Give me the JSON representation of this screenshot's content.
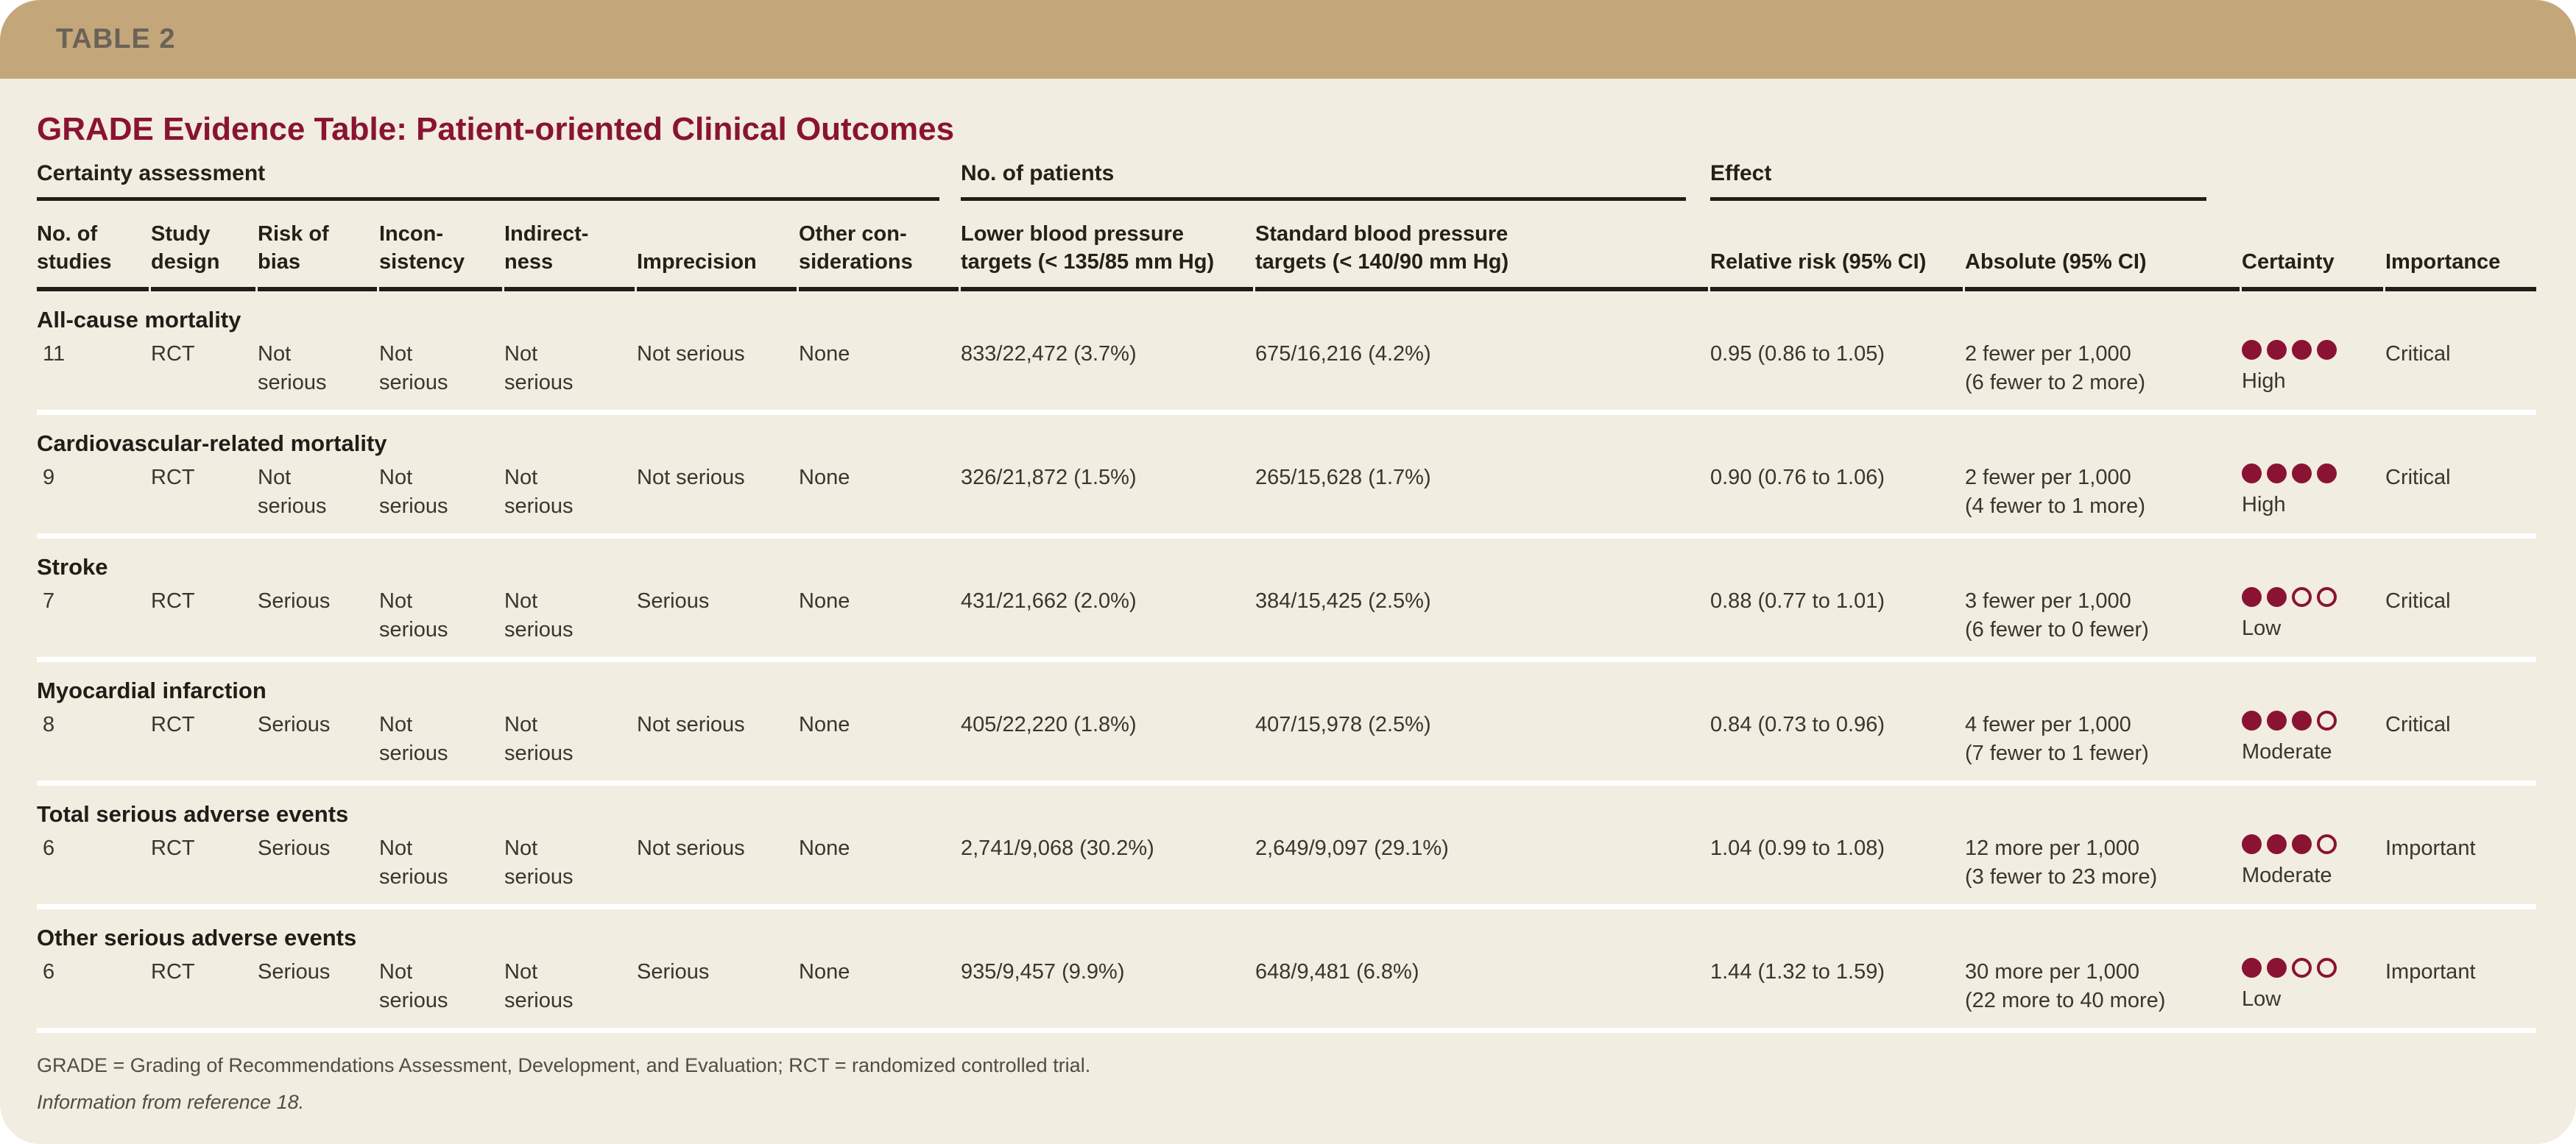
{
  "table_tag": "TABLE 2",
  "title": "GRADE Evidence Table: Patient-oriented Clinical Outcomes",
  "colors": {
    "band": "#c3a77b",
    "card_bg": "#f2ede1",
    "accent_maroon": "#8a1333",
    "rule_black": "#211d18",
    "row_separator": "#ffffff",
    "tag_text": "#6b6257",
    "heading_text": "#262019",
    "body_text": "#3a352f",
    "footnote_text": "#524c44"
  },
  "header": {
    "groups": [
      {
        "label": "Certainty assessment"
      },
      {
        "label": "No. of patients"
      },
      {
        "label": "Effect"
      }
    ],
    "columns": [
      {
        "key": "no_of_studies",
        "label": "No. of\nstudies"
      },
      {
        "key": "study_design",
        "label": "Study\ndesign"
      },
      {
        "key": "risk_of_bias",
        "label": "Risk of\nbias"
      },
      {
        "key": "inconsistency",
        "label": "Incon-\nsistency"
      },
      {
        "key": "indirectness",
        "label": "Indirect-\nness"
      },
      {
        "key": "imprecision",
        "label": "Imprecision"
      },
      {
        "key": "other_considerations",
        "label": "Other con-\nsiderations"
      },
      {
        "key": "lower_bp",
        "label": "Lower blood pressure\ntargets (< 135/85 mm Hg)"
      },
      {
        "key": "standard_bp",
        "label": "Standard blood pressure\ntargets (< 140/90 mm Hg)"
      },
      {
        "key": "relative_risk",
        "label": "Relative risk (95% CI)"
      },
      {
        "key": "absolute",
        "label": "Absolute (95% CI)"
      },
      {
        "key": "certainty",
        "label": "Certainty"
      },
      {
        "key": "importance",
        "label": "Importance"
      }
    ]
  },
  "sections": [
    {
      "outcome": "All-cause mortality",
      "cells": {
        "no_of_studies": "11",
        "study_design": "RCT",
        "risk_of_bias": "Not serious",
        "inconsistency": "Not serious",
        "indirectness": "Not serious",
        "imprecision": "Not serious",
        "other_considerations": "None",
        "lower_bp": "833/22,472 (3.7%)",
        "standard_bp": "675/16,216 (4.2%)",
        "relative_risk": "0.95 (0.86 to 1.05)",
        "absolute": "2 fewer per 1,000\n(6 fewer to 2 more)",
        "certainty": {
          "dots_filled": 4,
          "dots_total": 4,
          "label": "High"
        },
        "importance": "Critical"
      }
    },
    {
      "outcome": "Cardiovascular-related mortality",
      "cells": {
        "no_of_studies": "9",
        "study_design": "RCT",
        "risk_of_bias": "Not serious",
        "inconsistency": "Not serious",
        "indirectness": "Not serious",
        "imprecision": "Not serious",
        "other_considerations": "None",
        "lower_bp": "326/21,872 (1.5%)",
        "standard_bp": "265/15,628 (1.7%)",
        "relative_risk": "0.90 (0.76 to 1.06)",
        "absolute": "2 fewer per 1,000\n(4 fewer to 1 more)",
        "certainty": {
          "dots_filled": 4,
          "dots_total": 4,
          "label": "High"
        },
        "importance": "Critical"
      }
    },
    {
      "outcome": "Stroke",
      "cells": {
        "no_of_studies": "7",
        "study_design": "RCT",
        "risk_of_bias": "Serious",
        "inconsistency": "Not serious",
        "indirectness": "Not serious",
        "imprecision": "Serious",
        "other_considerations": "None",
        "lower_bp": "431/21,662 (2.0%)",
        "standard_bp": "384/15,425 (2.5%)",
        "relative_risk": "0.88 (0.77 to 1.01)",
        "absolute": "3 fewer per 1,000\n(6 fewer to 0 fewer)",
        "certainty": {
          "dots_filled": 2,
          "dots_total": 4,
          "label": "Low"
        },
        "importance": "Critical"
      }
    },
    {
      "outcome": "Myocardial infarction",
      "cells": {
        "no_of_studies": "8",
        "study_design": "RCT",
        "risk_of_bias": "Serious",
        "inconsistency": "Not serious",
        "indirectness": "Not serious",
        "imprecision": "Not serious",
        "other_considerations": "None",
        "lower_bp": "405/22,220 (1.8%)",
        "standard_bp": "407/15,978 (2.5%)",
        "relative_risk": "0.84 (0.73 to 0.96)",
        "absolute": "4 fewer per 1,000\n(7 fewer to 1 fewer)",
        "certainty": {
          "dots_filled": 3,
          "dots_total": 4,
          "label": "Moderate"
        },
        "importance": "Critical"
      }
    },
    {
      "outcome": "Total serious adverse events",
      "cells": {
        "no_of_studies": "6",
        "study_design": "RCT",
        "risk_of_bias": "Serious",
        "inconsistency": "Not serious",
        "indirectness": "Not serious",
        "imprecision": "Not serious",
        "other_considerations": "None",
        "lower_bp": "2,741/9,068 (30.2%)",
        "standard_bp": "2,649/9,097 (29.1%)",
        "relative_risk": "1.04 (0.99 to 1.08)",
        "absolute": "12 more per 1,000\n(3 fewer to 23 more)",
        "certainty": {
          "dots_filled": 3,
          "dots_total": 4,
          "label": "Moderate"
        },
        "importance": "Important"
      }
    },
    {
      "outcome": "Other serious adverse events",
      "cells": {
        "no_of_studies": "6",
        "study_design": "RCT",
        "risk_of_bias": "Serious",
        "inconsistency": "Not serious",
        "indirectness": "Not serious",
        "imprecision": "Serious",
        "other_considerations": "None",
        "lower_bp": "935/9,457 (9.9%)",
        "standard_bp": "648/9,481 (6.8%)",
        "relative_risk": "1.44 (1.32 to 1.59)",
        "absolute": "30 more per 1,000\n(22 more to 40 more)",
        "certainty": {
          "dots_filled": 2,
          "dots_total": 4,
          "label": "Low"
        },
        "importance": "Important"
      }
    }
  ],
  "footnotes": {
    "abbreviations": "GRADE = Grading of Recommendations Assessment, Development, and Evaluation; RCT = randomized controlled trial.",
    "source": "Information from reference 18."
  }
}
